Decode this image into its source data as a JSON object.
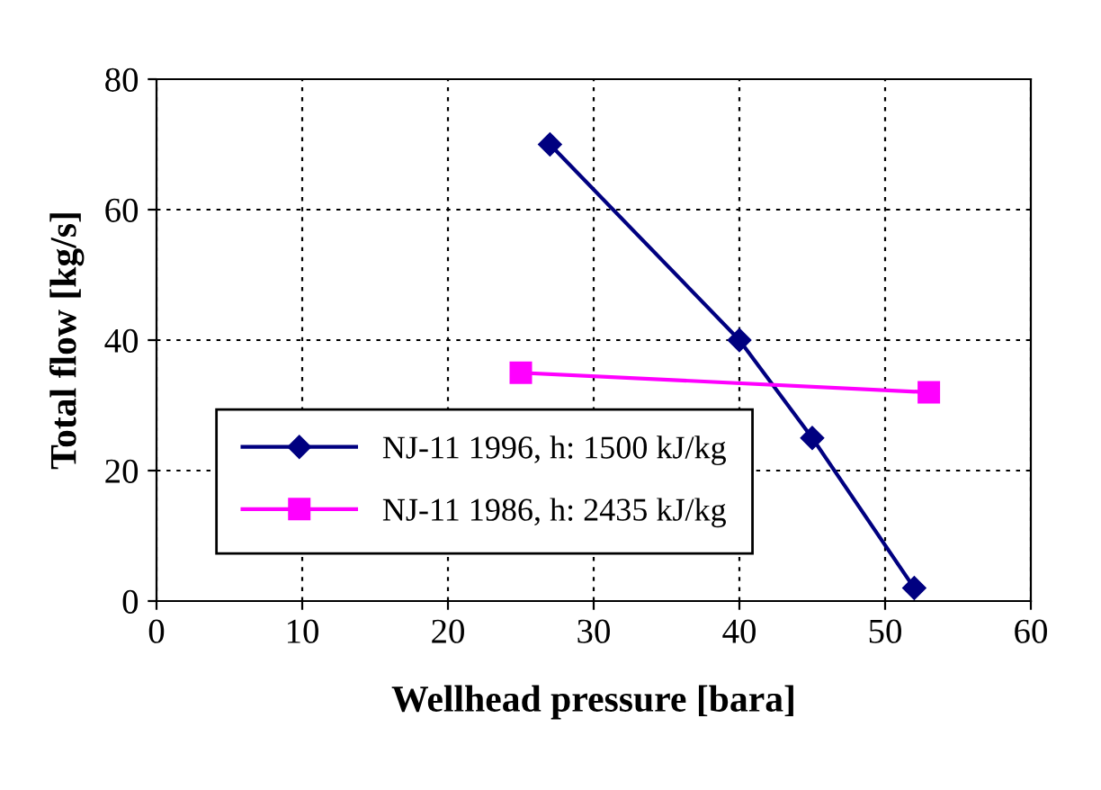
{
  "chart_data": {
    "type": "line",
    "xlabel": "Wellhead pressure [bara]",
    "ylabel": "Total flow [kg/s]",
    "xlim": [
      0,
      60
    ],
    "xticks": [
      0,
      10,
      20,
      30,
      40,
      50,
      60
    ],
    "ylim": [
      0,
      80
    ],
    "yticks": [
      0,
      20,
      40,
      60,
      80
    ],
    "grid": true,
    "legend": "bottom left",
    "series": [
      {
        "name": "NJ-11 1996, h: 1500 kJ/kg",
        "color": "#000080",
        "marker": "diamond",
        "x": [
          27,
          40,
          45,
          52
        ],
        "values": [
          70,
          40,
          25,
          2
        ]
      },
      {
        "name": "NJ-11 1986, h: 2435 kJ/kg",
        "color": "#ff00ff",
        "marker": "square",
        "x": [
          25,
          53
        ],
        "values": [
          35,
          32
        ]
      }
    ]
  }
}
